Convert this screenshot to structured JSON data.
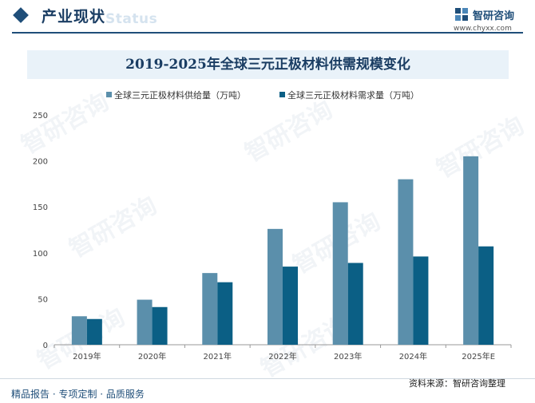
{
  "header": {
    "section_title": "产业现状",
    "section_subtitle": "Status",
    "brand_name": "智研咨询",
    "brand_url": "www.chyxx.com"
  },
  "chart_data": {
    "type": "bar",
    "title": "2019-2025年全球三元正极材料供需规模变化",
    "categories": [
      "2019年",
      "2020年",
      "2021年",
      "2022年",
      "2023年",
      "2024年",
      "2025年E"
    ],
    "series": [
      {
        "name": "全球三元正极材料供给量（万吨）",
        "color": "#5b8fab",
        "values": [
          31,
          49,
          78,
          126,
          155,
          180,
          205
        ]
      },
      {
        "name": "全球三元正极材料需求量（万吨）",
        "color": "#0b5f85",
        "values": [
          28,
          41,
          68,
          85,
          89,
          96,
          107
        ]
      }
    ],
    "ylim": [
      0,
      250
    ],
    "yticks": [
      0,
      50,
      100,
      150,
      200,
      250
    ],
    "legend": "top",
    "grid": false
  },
  "footer": {
    "left": "精品报告 · 专项定制 · 品质服务",
    "right": "资料来源：智研咨询整理"
  },
  "watermark": "智研咨询"
}
